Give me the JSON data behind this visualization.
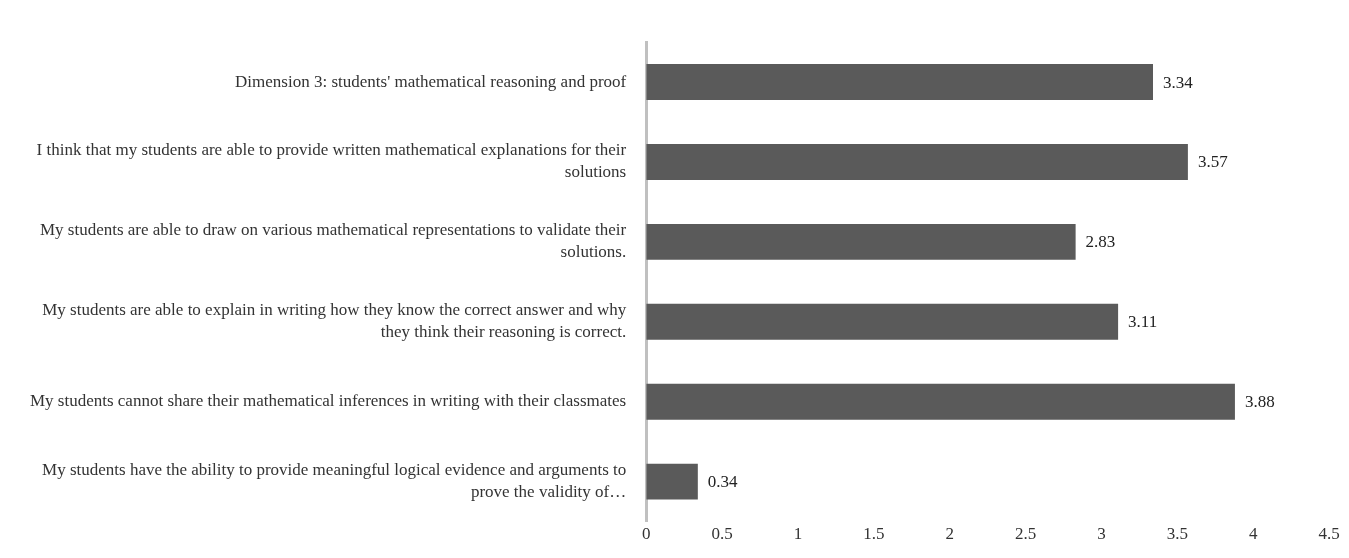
{
  "chart_data": {
    "type": "bar",
    "orientation": "horizontal",
    "categories": [
      "Dimension 3: students' mathematical reasoning and proof",
      "I think that my students are able to provide written mathematical explanations for their solutions",
      "My students are able to draw on various mathematical representations to validate their solutions.",
      "My students are able to explain in writing how they know the correct answer and why they think their reasoning is correct.",
      "My students cannot share their mathematical inferences in writing with their classmates",
      "My students have the ability to provide meaningful logical evidence and arguments to prove the validity of…"
    ],
    "values": [
      3.34,
      3.57,
      2.83,
      3.11,
      3.88,
      0.34
    ],
    "color": "#5a5a5a",
    "xlim": [
      0,
      4.5
    ],
    "xticks": [
      0,
      0.5,
      1,
      1.5,
      2,
      2.5,
      3,
      3.5,
      4,
      4.5
    ],
    "data_labels": true
  }
}
